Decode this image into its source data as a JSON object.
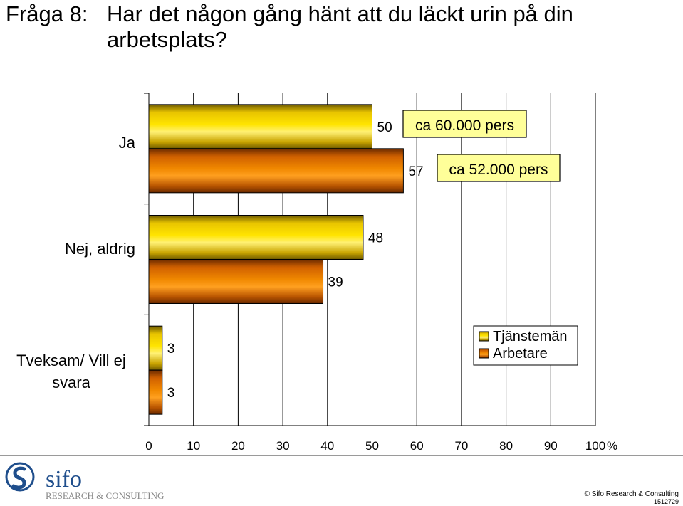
{
  "title": {
    "question_number": "Fråga 8:",
    "text": "Har det någon gång hänt att du läckt urin på din arbetsplats?"
  },
  "chart_data": {
    "type": "bar",
    "orientation": "horizontal",
    "categories": [
      "Ja",
      "Nej, aldrig",
      "Tveksam/ Vill ej svara"
    ],
    "series": [
      {
        "name": "Tjänstemän",
        "values": [
          50,
          48,
          3
        ],
        "color": "#f5d000"
      },
      {
        "name": "Arbetare",
        "values": [
          57,
          39,
          3
        ],
        "color": "#e07800"
      }
    ],
    "value_labels": [
      [
        "50",
        "48",
        "3"
      ],
      [
        "57",
        "39",
        "3"
      ]
    ],
    "xlim": [
      0,
      100
    ],
    "xticks": [
      0,
      10,
      20,
      30,
      40,
      50,
      60,
      70,
      80,
      90,
      100
    ],
    "xunit": "%",
    "grid": true,
    "legend_position": "right",
    "annotations": [
      "ca 60.000 pers",
      "ca 52.000 pers"
    ]
  },
  "footer": {
    "logo_name": "sifo",
    "logo_tagline": "RESEARCH & CONSULTING",
    "copyright": "© Sifo Research & Consulting",
    "code": "1512729"
  }
}
